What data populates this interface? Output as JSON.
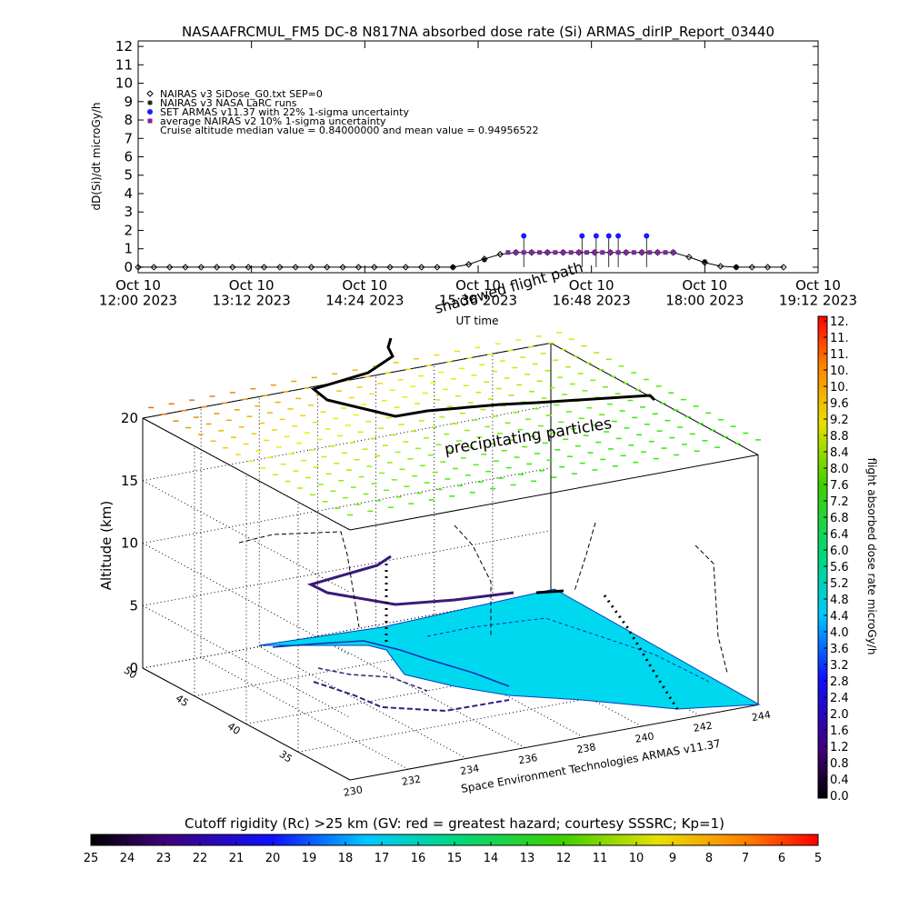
{
  "chart_data": [
    {
      "type": "line",
      "title": "NASAAFRCMUL_FM5 DC-8   N817NA absorbed dose rate (Si) ARMAS_dirIP_Report_03440",
      "ylabel": "dD(Si)/dt microGy/h",
      "xlabel": "UT time",
      "annotation": "shadowed flight path",
      "note": "Cruise altitude median value = 0.84000000 and mean value = 0.94956522",
      "xlim": [
        "2023-10-10 12:00",
        "2023-10-10 19:12"
      ],
      "xticks": [
        {
          "value": "2023-10-10 12:00",
          "label": "Oct 10\n12:00 2023"
        },
        {
          "value": "2023-10-10 13:12",
          "label": "Oct 10\n13:12 2023"
        },
        {
          "value": "2023-10-10 14:24",
          "label": "Oct 10\n14:24 2023"
        },
        {
          "value": "2023-10-10 15:36",
          "label": "Oct 10\n15:36 2023"
        },
        {
          "value": "2023-10-10 16:48",
          "label": "Oct 10\n16:48 2023"
        },
        {
          "value": "2023-10-10 18:00",
          "label": "Oct 10\n18:00 2023"
        },
        {
          "value": "2023-10-10 19:12",
          "label": "Oct 10\n19:12 2023"
        }
      ],
      "ylim": [
        -0.3,
        12.3
      ],
      "yticks": [
        0,
        1,
        2,
        3,
        4,
        5,
        6,
        7,
        8,
        9,
        10,
        11,
        12
      ],
      "series": [
        {
          "name": "NAIRAS v3 SiDose_G0.txt SEP=0",
          "color": "#000000",
          "marker": "diamond",
          "line": true,
          "x": [
            "2023-10-10 12:00",
            "2023-10-10 12:10",
            "2023-10-10 12:20",
            "2023-10-10 12:30",
            "2023-10-10 12:40",
            "2023-10-10 12:50",
            "2023-10-10 13:00",
            "2023-10-10 13:10",
            "2023-10-10 13:20",
            "2023-10-10 13:30",
            "2023-10-10 13:40",
            "2023-10-10 13:50",
            "2023-10-10 14:00",
            "2023-10-10 14:10",
            "2023-10-10 14:20",
            "2023-10-10 14:30",
            "2023-10-10 14:40",
            "2023-10-10 14:50",
            "2023-10-10 15:00",
            "2023-10-10 15:10",
            "2023-10-10 15:20",
            "2023-10-10 15:30",
            "2023-10-10 15:40",
            "2023-10-10 15:50",
            "2023-10-10 16:00",
            "2023-10-10 16:10",
            "2023-10-10 16:20",
            "2023-10-10 16:30",
            "2023-10-10 16:40",
            "2023-10-10 16:50",
            "2023-10-10 17:00",
            "2023-10-10 17:10",
            "2023-10-10 17:20",
            "2023-10-10 17:30",
            "2023-10-10 17:40",
            "2023-10-10 17:50",
            "2023-10-10 18:00",
            "2023-10-10 18:10",
            "2023-10-10 18:20",
            "2023-10-10 18:30",
            "2023-10-10 18:40",
            "2023-10-10 18:50"
          ],
          "values": [
            0,
            0,
            0,
            0,
            0,
            0,
            0,
            0,
            0,
            0,
            0,
            0,
            0,
            0,
            0,
            0,
            0,
            0,
            0,
            0,
            0,
            0.15,
            0.45,
            0.7,
            0.8,
            0.8,
            0.8,
            0.8,
            0.8,
            0.8,
            0.8,
            0.8,
            0.8,
            0.8,
            0.8,
            0.55,
            0.25,
            0.05,
            0,
            0,
            0,
            0
          ]
        },
        {
          "name": "NAIRAS v3 NASA LaRC runs",
          "color": "#000000",
          "marker": "asterisk",
          "line": false,
          "x": [
            "2023-10-10 15:20",
            "2023-10-10 15:40",
            "2023-10-10 16:00",
            "2023-10-10 16:20",
            "2023-10-10 16:40",
            "2023-10-10 17:00",
            "2023-10-10 17:20",
            "2023-10-10 17:40",
            "2023-10-10 18:00",
            "2023-10-10 18:20"
          ],
          "values": [
            0,
            0.4,
            0.8,
            0.8,
            0.8,
            0.8,
            0.8,
            0.8,
            0.3,
            0
          ]
        },
        {
          "name": "SET ARMAS v11.37 with 22% 1-sigma uncertainty",
          "color": "#1a1aff",
          "marker": "circle",
          "line": false,
          "x": [
            "2023-10-10 16:05",
            "2023-10-10 16:42",
            "2023-10-10 16:51",
            "2023-10-10 16:59",
            "2023-10-10 17:05",
            "2023-10-10 17:23"
          ],
          "values": [
            1.7,
            1.7,
            1.7,
            1.7,
            1.7,
            1.7
          ]
        },
        {
          "name": "average NAIRAS v2 10% 1-sigma uncertainty",
          "color": "#7a2a9a",
          "marker": "square",
          "line": false,
          "x": [
            "2023-10-10 15:55",
            "2023-10-10 16:00",
            "2023-10-10 16:05",
            "2023-10-10 16:10",
            "2023-10-10 16:15",
            "2023-10-10 16:20",
            "2023-10-10 16:25",
            "2023-10-10 16:30",
            "2023-10-10 16:35",
            "2023-10-10 16:40",
            "2023-10-10 16:45",
            "2023-10-10 16:50",
            "2023-10-10 16:55",
            "2023-10-10 17:00",
            "2023-10-10 17:05",
            "2023-10-10 17:10",
            "2023-10-10 17:15",
            "2023-10-10 17:20",
            "2023-10-10 17:25",
            "2023-10-10 17:30",
            "2023-10-10 17:35",
            "2023-10-10 17:40"
          ],
          "values": [
            0.8,
            0.8,
            0.8,
            0.8,
            0.8,
            0.8,
            0.8,
            0.8,
            0.8,
            0.8,
            0.8,
            0.8,
            0.8,
            0.8,
            0.8,
            0.8,
            0.8,
            0.8,
            0.8,
            0.8,
            0.8,
            0.8
          ]
        }
      ]
    },
    {
      "type": "surface3d",
      "zlabel": "Altitude (km)",
      "annotations": [
        "precipitating particles",
        "Space Environment Technologies ARMAS v11.37"
      ],
      "xlim": [
        230,
        244
      ],
      "xticks": [
        230,
        232,
        234,
        236,
        238,
        240,
        242,
        244
      ],
      "ylim": [
        30,
        50
      ],
      "yticks": [
        35,
        40,
        45,
        50
      ],
      "zlim": [
        0,
        20
      ],
      "zticks": [
        0,
        5,
        10,
        15,
        20
      ],
      "colorbar": {
        "label": "flight absorbed dose rate microGy/h",
        "lim": [
          0,
          11.6
        ],
        "ticks": [
          {
            "value": 0,
            "label": "0.0"
          },
          0.4,
          0.8,
          1.2,
          1.6,
          {
            "value": 2,
            "label": "2.0"
          },
          2.4,
          2.8,
          3.2,
          3.6,
          {
            "value": 4,
            "label": "4.0"
          },
          4.4,
          4.8,
          5.2,
          5.6,
          {
            "value": 6,
            "label": "6.0"
          },
          6.4,
          6.8,
          7.2,
          7.6,
          {
            "value": 8,
            "label": "8.0"
          },
          8.4,
          8.8,
          9.2,
          9.6,
          {
            "value": 10,
            "label": "10."
          },
          {
            "value": 10.4,
            "label": "10."
          },
          {
            "value": 10.8,
            "label": "11."
          },
          {
            "value": 11.2,
            "label": "11."
          },
          {
            "value": 11.6,
            "label": "12."
          }
        ]
      },
      "colorbar2": {
        "label": "Cutoff rigidity (Rc) >25 km (GV: red = greatest hazard; courtesy SSSRC; Kp=1)",
        "lim": [
          25,
          5
        ],
        "ticks": [
          25,
          24,
          23,
          22,
          21,
          20,
          19,
          18,
          17,
          16,
          15,
          14,
          13,
          12,
          11,
          10,
          9,
          8,
          7,
          6,
          5
        ]
      }
    }
  ]
}
